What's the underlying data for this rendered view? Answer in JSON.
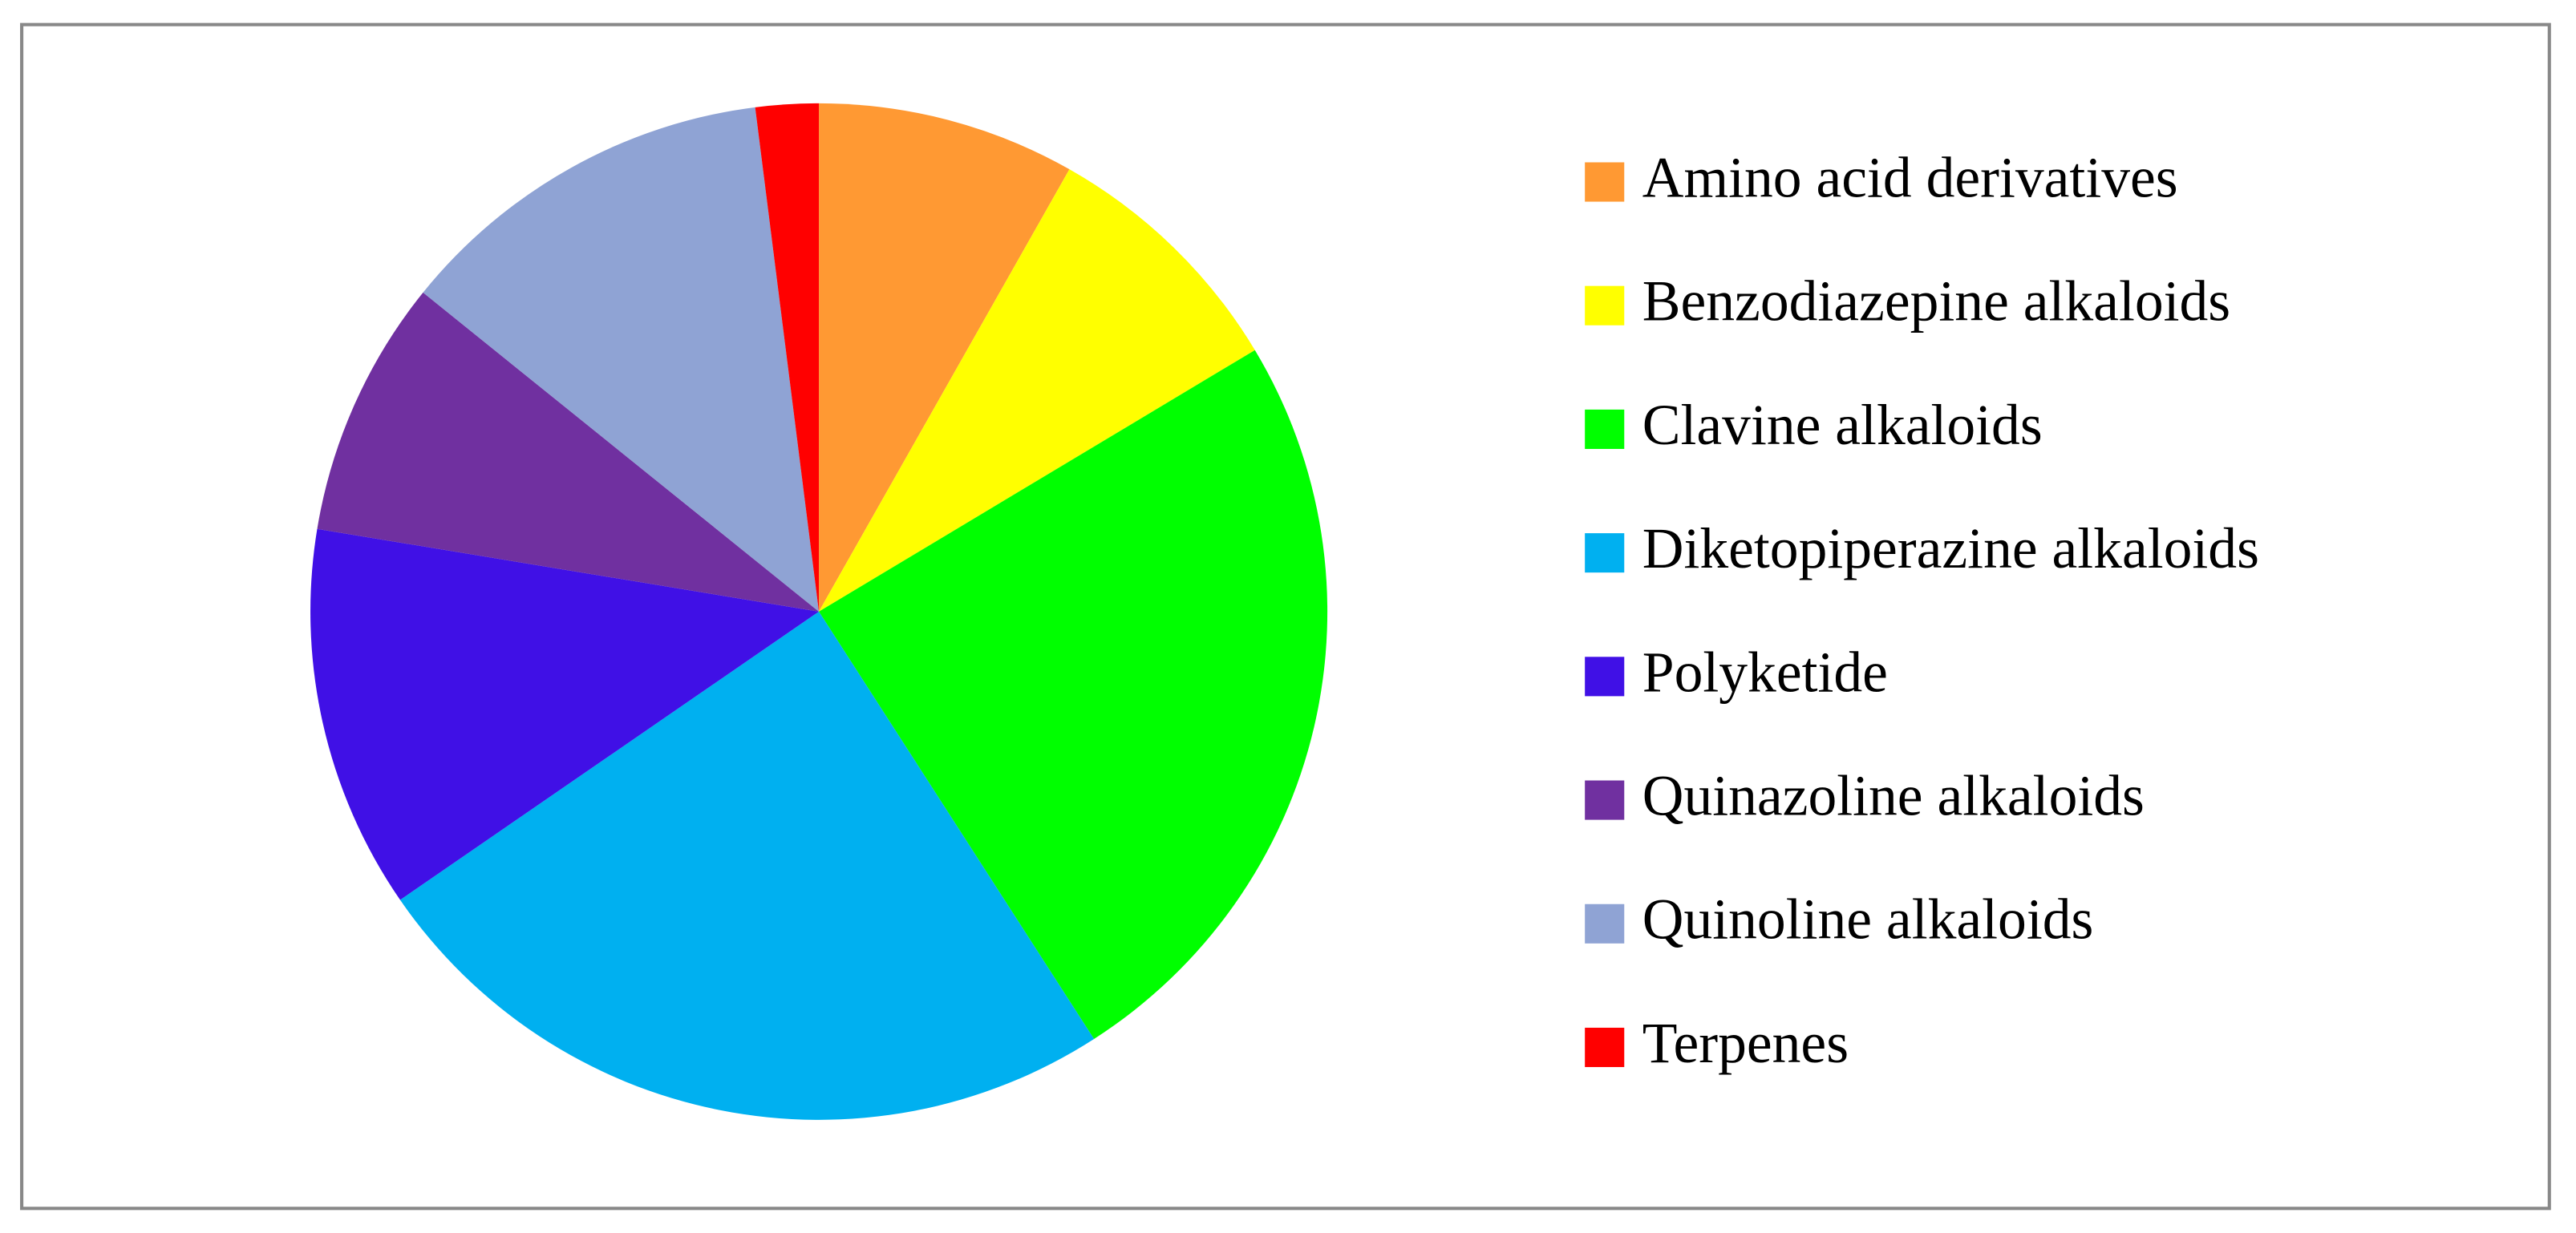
{
  "chart_data": {
    "type": "pie",
    "categories": [
      "Amino acid derivatives",
      "Benzodiazepine alkaloids",
      "Clavine alkaloids",
      "Diketopiperazine alkaloids",
      "Polyketide",
      "Quinazoline alkaloids",
      "Quinoline alkaloids",
      "Terpenes"
    ],
    "values": [
      8.2,
      8.2,
      24.5,
      24.5,
      12.2,
      8.2,
      12.2,
      2.0
    ],
    "colors": [
      "#ff9933",
      "#ffff00",
      "#00ff00",
      "#00b0f0",
      "#4010e6",
      "#7030a0",
      "#8fa3d4",
      "#ff0000"
    ],
    "legend": "right"
  }
}
